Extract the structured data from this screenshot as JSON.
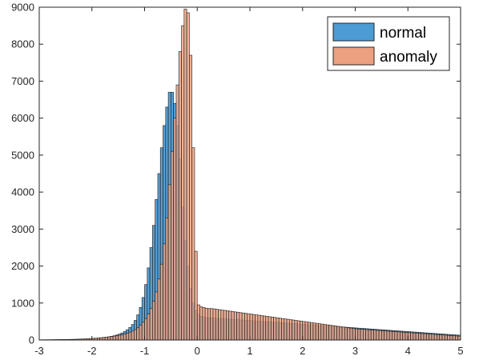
{
  "chart_data": {
    "type": "bar",
    "subtype": "overlaid-histogram",
    "title": "",
    "xlabel": "",
    "ylabel": "",
    "xlim": [
      -3,
      5
    ],
    "ylim": [
      0,
      9000
    ],
    "xticks": [
      "-3",
      "-2",
      "-1",
      "0",
      "1",
      "2",
      "3",
      "4",
      "5"
    ],
    "yticks": [
      "0",
      "1000",
      "2000",
      "3000",
      "4000",
      "5000",
      "6000",
      "7000",
      "8000",
      "9000"
    ],
    "grid": false,
    "legend_position": "top-right",
    "bin_start": -3,
    "bin_width": 0.05,
    "series": [
      {
        "name": "normal",
        "color": "#4d9bd4",
        "edge": "#1a1a1a",
        "values": [
          5,
          5,
          5,
          6,
          6,
          7,
          8,
          9,
          10,
          11,
          12,
          13,
          14,
          15,
          17,
          19,
          21,
          23,
          26,
          30,
          35,
          40,
          45,
          55,
          65,
          75,
          85,
          100,
          115,
          135,
          160,
          190,
          230,
          280,
          340,
          420,
          530,
          680,
          880,
          1150,
          1500,
          1950,
          2500,
          3100,
          3800,
          4500,
          5200,
          5800,
          6300,
          6700,
          6700,
          6400,
          5800,
          4900,
          3600,
          2700,
          2000,
          1400,
          1000,
          800,
          700,
          640,
          620,
          610,
          600,
          600,
          590,
          590,
          580,
          580,
          570,
          570,
          560,
          560,
          550,
          550,
          540,
          540,
          530,
          530,
          520,
          520,
          510,
          510,
          500,
          500,
          495,
          490,
          485,
          480,
          475,
          470,
          465,
          460,
          455,
          450,
          445,
          440,
          435,
          430,
          425,
          420,
          415,
          410,
          405,
          400,
          395,
          390,
          385,
          380,
          375,
          370,
          365,
          360,
          355,
          350,
          345,
          340,
          335,
          330,
          325,
          320,
          315,
          310,
          305,
          300,
          295,
          290,
          285,
          280,
          275,
          270,
          265,
          260,
          255,
          250,
          245,
          240,
          235,
          230,
          225,
          220,
          215,
          210,
          205,
          200,
          195,
          190,
          185,
          180,
          175,
          170,
          165,
          160,
          155,
          150,
          145,
          140,
          135,
          130,
          125,
          120,
          115,
          110,
          105,
          100,
          95,
          90,
          85,
          80
        ]
      },
      {
        "name": "anomaly",
        "color": "#eda07f",
        "edge": "#1a1a1a",
        "values": [
          5,
          5,
          6,
          6,
          7,
          8,
          9,
          10,
          11,
          13,
          14,
          16,
          18,
          20,
          22,
          25,
          28,
          32,
          36,
          40,
          45,
          50,
          56,
          62,
          70,
          78,
          86,
          95,
          105,
          118,
          130,
          145,
          165,
          185,
          210,
          240,
          280,
          330,
          400,
          480,
          580,
          700,
          850,
          1050,
          1300,
          1650,
          2050,
          2600,
          3300,
          4200,
          5100,
          6000,
          6900,
          7800,
          8500,
          8950,
          8850,
          7700,
          5200,
          2400,
          950,
          900,
          880,
          860,
          850,
          850,
          840,
          830,
          820,
          810,
          800,
          790,
          780,
          770,
          760,
          750,
          740,
          730,
          720,
          710,
          700,
          690,
          680,
          670,
          660,
          650,
          640,
          630,
          620,
          610,
          600,
          590,
          580,
          570,
          560,
          550,
          540,
          530,
          520,
          510,
          500,
          490,
          480,
          470,
          460,
          450,
          440,
          430,
          420,
          410,
          400,
          390,
          380,
          370,
          360,
          350,
          340,
          330,
          320,
          310,
          300,
          295,
          290,
          285,
          280,
          275,
          270,
          265,
          260,
          255,
          250,
          245,
          240,
          235,
          230,
          225,
          220,
          215,
          210,
          205,
          200,
          195,
          190,
          185,
          180,
          175,
          170,
          165,
          160,
          155,
          150,
          145,
          140,
          135,
          130,
          125,
          120,
          115,
          110,
          105,
          100,
          95,
          90,
          85
        ]
      }
    ]
  }
}
